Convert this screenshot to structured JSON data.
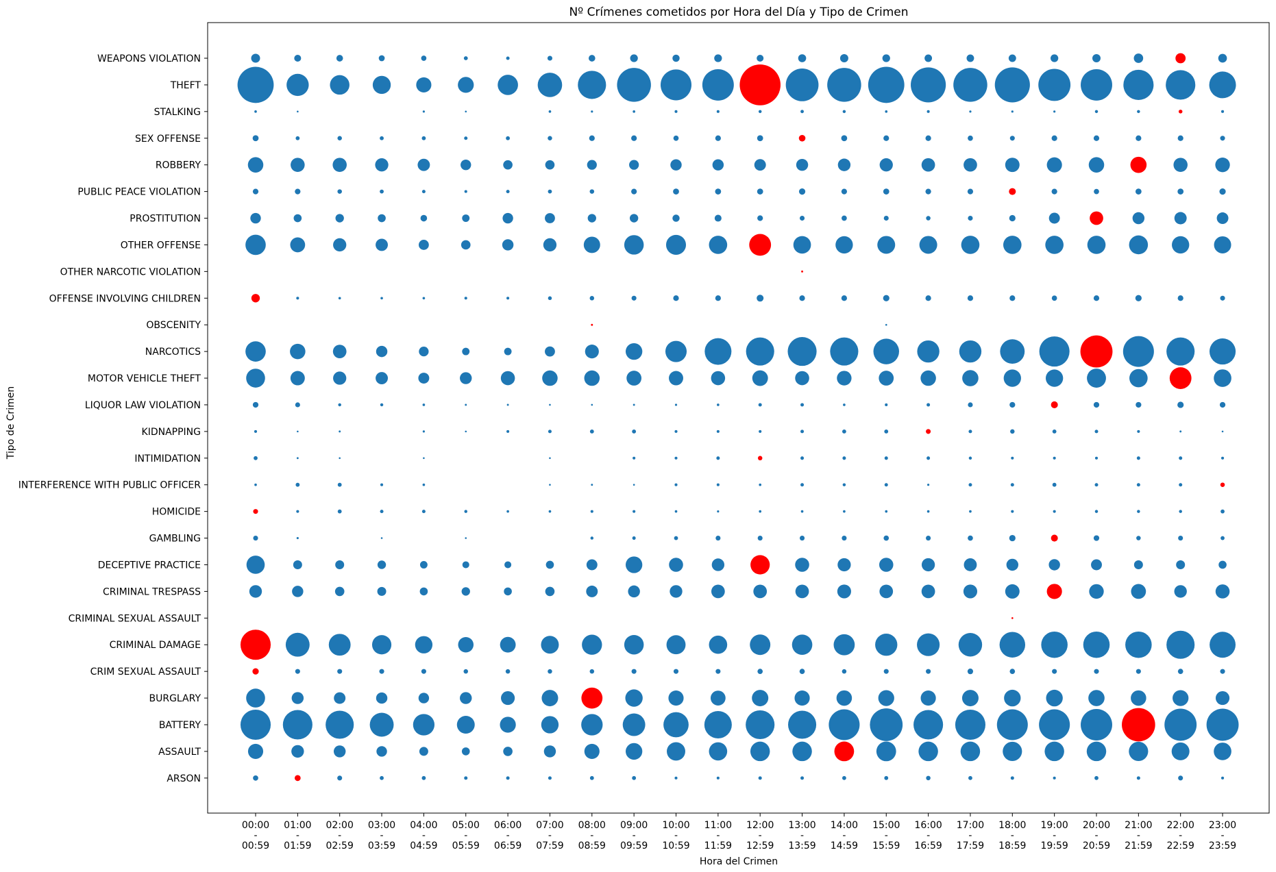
{
  "chart_data": {
    "type": "scatter",
    "title": "Nº Crímenes cometidos por Hora del Día y Tipo de Crimen",
    "xlabel": "Hora del Crimen",
    "ylabel": "Tipo de Crimen",
    "grid": false,
    "legend": "none",
    "colors": {
      "default": "#1f77b4",
      "max_per_category": "#ff0000"
    },
    "hours": [
      {
        "start": "00:00",
        "sep": "-",
        "end": "00:59"
      },
      {
        "start": "01:00",
        "sep": "-",
        "end": "01:59"
      },
      {
        "start": "02:00",
        "sep": "-",
        "end": "02:59"
      },
      {
        "start": "03:00",
        "sep": "-",
        "end": "03:59"
      },
      {
        "start": "04:00",
        "sep": "-",
        "end": "04:59"
      },
      {
        "start": "05:00",
        "sep": "-",
        "end": "05:59"
      },
      {
        "start": "06:00",
        "sep": "-",
        "end": "06:59"
      },
      {
        "start": "07:00",
        "sep": "-",
        "end": "07:59"
      },
      {
        "start": "08:00",
        "sep": "-",
        "end": "08:59"
      },
      {
        "start": "09:00",
        "sep": "-",
        "end": "09:59"
      },
      {
        "start": "10:00",
        "sep": "-",
        "end": "10:59"
      },
      {
        "start": "11:00",
        "sep": "-",
        "end": "11:59"
      },
      {
        "start": "12:00",
        "sep": "-",
        "end": "12:59"
      },
      {
        "start": "13:00",
        "sep": "-",
        "end": "13:59"
      },
      {
        "start": "14:00",
        "sep": "-",
        "end": "14:59"
      },
      {
        "start": "15:00",
        "sep": "-",
        "end": "15:59"
      },
      {
        "start": "16:00",
        "sep": "-",
        "end": "16:59"
      },
      {
        "start": "17:00",
        "sep": "-",
        "end": "17:59"
      },
      {
        "start": "18:00",
        "sep": "-",
        "end": "18:59"
      },
      {
        "start": "19:00",
        "sep": "-",
        "end": "19:59"
      },
      {
        "start": "20:00",
        "sep": "-",
        "end": "20:59"
      },
      {
        "start": "21:00",
        "sep": "-",
        "end": "21:59"
      },
      {
        "start": "22:00",
        "sep": "-",
        "end": "22:59"
      },
      {
        "start": "23:00",
        "sep": "-",
        "end": "23:59"
      }
    ],
    "categories": [
      "WEAPONS VIOLATION",
      "THEFT",
      "STALKING",
      "SEX OFFENSE",
      "ROBBERY",
      "PUBLIC PEACE VIOLATION",
      "PROSTITUTION",
      "OTHER OFFENSE",
      "OTHER NARCOTIC VIOLATION",
      "OFFENSE INVOLVING CHILDREN",
      "OBSCENITY",
      "NARCOTICS",
      "MOTOR VEHICLE THEFT",
      "LIQUOR LAW VIOLATION",
      "KIDNAPPING",
      "INTIMIDATION",
      "INTERFERENCE WITH PUBLIC OFFICER",
      "HOMICIDE",
      "GAMBLING",
      "DECEPTIVE PRACTICE",
      "CRIMINAL TRESPASS",
      "CRIMINAL SEXUAL ASSAULT",
      "CRIMINAL DAMAGE",
      "CRIM SEXUAL ASSAULT",
      "BURGLARY",
      "BATTERY",
      "ASSAULT",
      "ARSON"
    ],
    "marker_size_rows": [
      [
        100,
        60,
        55,
        45,
        35,
        20,
        15,
        30,
        55,
        75,
        65,
        75,
        60,
        80,
        85,
        75,
        70,
        70,
        70,
        75,
        85,
        110,
        130,
        95
      ],
      [
        1650,
        620,
        480,
        410,
        290,
        320,
        520,
        750,
        1000,
        1450,
        1200,
        1250,
        2100,
        1350,
        1450,
        1650,
        1550,
        1450,
        1550,
        1300,
        1250,
        1150,
        1100,
        900
      ],
      [
        8,
        4,
        0,
        0,
        6,
        4,
        0,
        8,
        6,
        8,
        10,
        10,
        12,
        14,
        12,
        8,
        10,
        6,
        6,
        6,
        12,
        12,
        18,
        10
      ],
      [
        45,
        20,
        25,
        20,
        20,
        15,
        20,
        25,
        40,
        40,
        35,
        40,
        45,
        55,
        45,
        40,
        40,
        35,
        30,
        40,
        40,
        40,
        40,
        30
      ],
      [
        300,
        250,
        250,
        220,
        190,
        140,
        110,
        110,
        120,
        120,
        160,
        160,
        170,
        180,
        200,
        220,
        230,
        230,
        260,
        290,
        300,
        330,
        250,
        270
      ],
      [
        40,
        40,
        25,
        20,
        15,
        10,
        15,
        20,
        25,
        40,
        45,
        45,
        45,
        50,
        40,
        45,
        40,
        40,
        60,
        40,
        35,
        45,
        45,
        50
      ],
      [
        140,
        80,
        90,
        80,
        55,
        70,
        140,
        130,
        90,
        90,
        65,
        60,
        40,
        30,
        35,
        30,
        25,
        30,
        50,
        150,
        230,
        180,
        190,
        170
      ],
      [
        520,
        280,
        220,
        190,
        130,
        110,
        160,
        220,
        340,
        480,
        500,
        420,
        600,
        390,
        380,
        400,
        400,
        420,
        420,
        420,
        420,
        450,
        380,
        370
      ],
      [
        0,
        0,
        0,
        0,
        0,
        0,
        0,
        0,
        0,
        0,
        0,
        0,
        0,
        5,
        0,
        0,
        0,
        0,
        0,
        0,
        0,
        0,
        0,
        0
      ],
      [
        90,
        10,
        8,
        8,
        8,
        10,
        10,
        18,
        25,
        30,
        40,
        40,
        60,
        40,
        40,
        50,
        40,
        40,
        40,
        35,
        40,
        50,
        40,
        30
      ],
      [
        0,
        0,
        0,
        0,
        0,
        0,
        0,
        0,
        5,
        0,
        0,
        0,
        0,
        0,
        0,
        4,
        0,
        0,
        0,
        0,
        0,
        0,
        0,
        0
      ],
      [
        520,
        300,
        230,
        160,
        120,
        70,
        70,
        130,
        240,
        350,
        570,
        900,
        1000,
        1050,
        1000,
        830,
        620,
        620,
        760,
        1150,
        1300,
        1200,
        1000,
        860
      ],
      [
        450,
        260,
        220,
        190,
        150,
        180,
        250,
        300,
        300,
        280,
        260,
        250,
        310,
        250,
        270,
        280,
        300,
        330,
        380,
        380,
        460,
        420,
        600,
        390
      ],
      [
        40,
        30,
        12,
        12,
        8,
        5,
        5,
        4,
        4,
        5,
        6,
        8,
        15,
        15,
        8,
        10,
        15,
        30,
        40,
        60,
        40,
        40,
        50,
        40
      ],
      [
        10,
        4,
        5,
        0,
        6,
        4,
        10,
        15,
        20,
        20,
        10,
        10,
        10,
        15,
        20,
        20,
        30,
        15,
        25,
        20,
        15,
        10,
        5,
        4
      ],
      [
        20,
        5,
        4,
        0,
        4,
        0,
        0,
        4,
        0,
        10,
        10,
        15,
        25,
        15,
        15,
        15,
        15,
        12,
        10,
        10,
        10,
        15,
        15,
        10
      ],
      [
        8,
        20,
        20,
        10,
        8,
        0,
        0,
        4,
        5,
        4,
        10,
        10,
        8,
        15,
        12,
        15,
        6,
        15,
        15,
        20,
        15,
        15,
        15,
        25
      ],
      [
        30,
        10,
        20,
        15,
        15,
        12,
        8,
        8,
        10,
        10,
        8,
        6,
        8,
        8,
        8,
        8,
        8,
        8,
        10,
        10,
        12,
        12,
        12,
        20
      ],
      [
        30,
        6,
        0,
        4,
        0,
        4,
        0,
        0,
        12,
        15,
        20,
        30,
        30,
        30,
        30,
        35,
        30,
        35,
        50,
        60,
        40,
        25,
        30,
        20
      ],
      [
        420,
        100,
        100,
        90,
        70,
        60,
        60,
        80,
        150,
        350,
        250,
        200,
        470,
        250,
        220,
        250,
        220,
        210,
        180,
        160,
        150,
        100,
        100,
        80
      ],
      [
        200,
        160,
        110,
        100,
        80,
        90,
        80,
        110,
        170,
        180,
        200,
        230,
        230,
        230,
        240,
        230,
        230,
        240,
        260,
        290,
        270,
        280,
        200,
        250
      ],
      [
        0,
        0,
        0,
        0,
        0,
        0,
        0,
        0,
        0,
        0,
        0,
        0,
        0,
        0,
        0,
        0,
        0,
        0,
        4,
        0,
        0,
        0,
        0,
        0
      ],
      [
        1150,
        720,
        600,
        470,
        380,
        300,
        310,
        400,
        510,
        480,
        460,
        420,
        530,
        520,
        560,
        620,
        650,
        700,
        830,
        880,
        880,
        880,
        1000,
        850
      ],
      [
        50,
        30,
        30,
        30,
        30,
        25,
        25,
        25,
        25,
        30,
        30,
        30,
        35,
        35,
        25,
        30,
        30,
        40,
        35,
        30,
        30,
        30,
        35,
        30
      ],
      [
        450,
        180,
        170,
        160,
        140,
        180,
        240,
        340,
        560,
        380,
        290,
        280,
        340,
        290,
        300,
        320,
        290,
        340,
        350,
        350,
        330,
        300,
        320,
        240
      ],
      [
        1150,
        1100,
        1000,
        720,
        580,
        400,
        320,
        380,
        580,
        640,
        800,
        950,
        1050,
        1000,
        1200,
        1350,
        1100,
        1150,
        1200,
        1200,
        1250,
        1400,
        1300,
        1300
      ],
      [
        290,
        200,
        180,
        140,
        100,
        80,
        110,
        180,
        290,
        350,
        430,
        420,
        480,
        480,
        490,
        490,
        480,
        480,
        470,
        480,
        480,
        470,
        400,
        390
      ],
      [
        35,
        45,
        30,
        20,
        20,
        15,
        15,
        15,
        20,
        20,
        10,
        10,
        15,
        15,
        20,
        20,
        25,
        20,
        15,
        10,
        20,
        15,
        30,
        10
      ]
    ]
  }
}
